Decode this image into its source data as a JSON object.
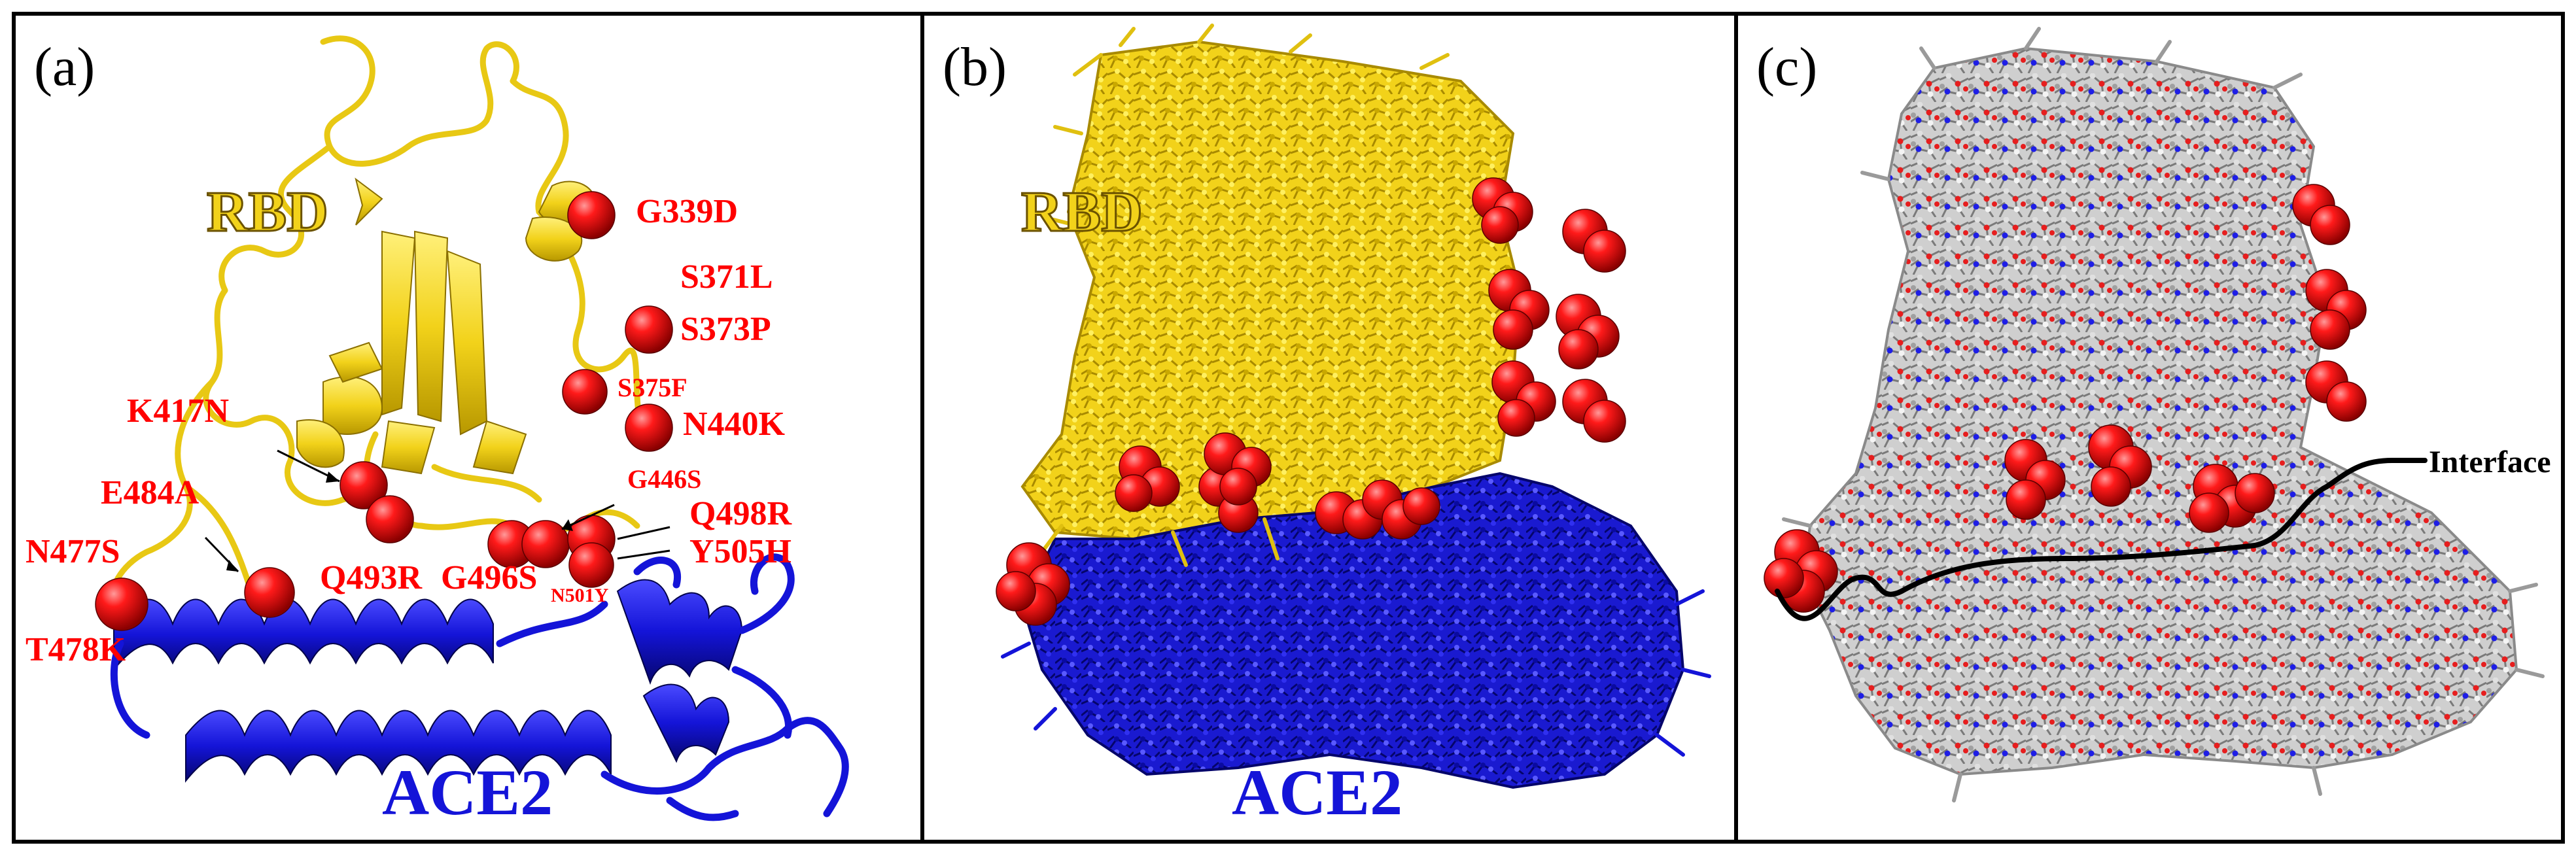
{
  "panels": {
    "a": {
      "label": "(a)",
      "rbd_label": "RBD",
      "ace2_label": "ACE2"
    },
    "b": {
      "label": "(b)",
      "rbd_label": "RBD",
      "ace2_label": "ACE2"
    },
    "c": {
      "label": "(c)",
      "interface_label": "Interface"
    }
  },
  "mutations": {
    "g339d": "G339D",
    "s371l": "S371L",
    "s373p": "S373P",
    "s375f": "S375F",
    "n440k": "N440K",
    "k417n": "K417N",
    "g446s": "G446S",
    "e484a": "E484A",
    "q498r": "Q498R",
    "y505h": "Y505H",
    "n477s": "N477S",
    "q493r": "Q493R",
    "g496s": "G496S",
    "n501y": "N501Y",
    "t478k": "T478K"
  },
  "colors": {
    "rbd": "#f2d21a",
    "ace2": "#1414d8",
    "mutation": "#ff0000",
    "carbon": "#b4b4b4",
    "nitrogen": "#1e1ee6",
    "oxygen": "#e61e1e",
    "sulfur": "#e6e61e"
  }
}
